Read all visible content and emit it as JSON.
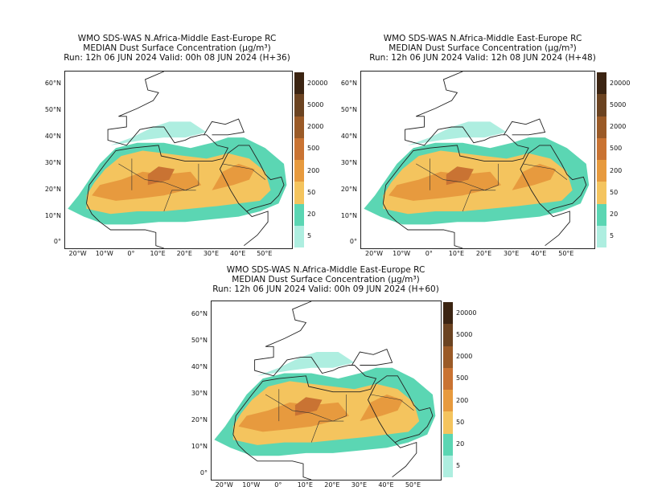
{
  "colorbar": {
    "labels": [
      "20000",
      "5000",
      "2000",
      "500",
      "200",
      "50",
      "20",
      "5"
    ],
    "colors": [
      "#3b2412",
      "#6b4321",
      "#9a5a27",
      "#c97333",
      "#e79a3e",
      "#f4c45e",
      "#5bd6b3",
      "#aeeee0"
    ]
  },
  "axes": {
    "lat_labels": [
      "60°N",
      "50°N",
      "40°N",
      "30°N",
      "20°N",
      "10°N",
      "0°"
    ],
    "lon_labels": [
      "20°W",
      "10°W",
      "0°",
      "10°E",
      "20°E",
      "30°E",
      "40°E",
      "50°E"
    ]
  },
  "panels": [
    {
      "title_line1": "WMO SDS-WAS   N.Africa-Middle East-Europe RC",
      "title_line2": "MEDIAN    Dust Surface Concentration (μg/m³)",
      "title_line3": "Run: 12h 06 JUN 2024   Valid: 00h 08 JUN 2024 (H+36)",
      "forecast_hour": 36
    },
    {
      "title_line1": "WMO SDS-WAS   N.Africa-Middle East-Europe RC",
      "title_line2": "MEDIAN    Dust Surface Concentration (μg/m³)",
      "title_line3": "Run: 12h 06 JUN 2024   Valid: 12h 08 JUN 2024 (H+48)",
      "forecast_hour": 48
    },
    {
      "title_line1": "WMO SDS-WAS   N.Africa-Middle East-Europe RC",
      "title_line2": "MEDIAN    Dust Surface Concentration (μg/m³)",
      "title_line3": "Run: 12h 06 JUN 2024   Valid: 00h 09 JUN 2024 (H+60)",
      "forecast_hour": 60
    }
  ]
}
